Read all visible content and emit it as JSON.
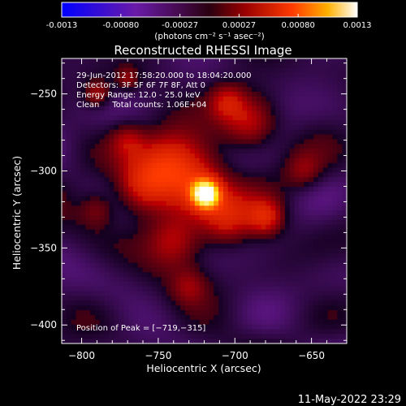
{
  "colorbar": {
    "tick_labels": [
      "-0.0013",
      "-0.00080",
      "-0.00027",
      "0.00027",
      "0.00080",
      "0.0013"
    ],
    "unit_label": "(photons cm⁻² s⁻¹ asec⁻²)",
    "range": [
      -0.0013,
      0.0013
    ]
  },
  "chart_data": {
    "type": "heatmap",
    "title": "Reconstructed RHESSI Image",
    "xlabel": "Heliocentric X (arcsec)",
    "ylabel": "Heliocentric Y (arcsec)",
    "xlim": [
      -813,
      -627
    ],
    "ylim": [
      -412,
      -227
    ],
    "xticks": [
      -800,
      -750,
      -700,
      -650
    ],
    "yticks": [
      -250,
      -300,
      -350,
      -400
    ],
    "xtick_labels": [
      "−800",
      "−750",
      "−700",
      "−650"
    ],
    "ytick_labels": [
      "−250",
      "−300",
      "−350",
      "−400"
    ],
    "peak": {
      "x": -719,
      "y": -315
    },
    "info_lines": [
      "29-Jun-2012 17:58:20.000 to 18:04:20.000",
      "Detectors: 3F 5F 6F 7F 8F, Att 0",
      "Energy Range: 12.0 - 25.0 keV",
      "Clean     Total counts: 1.06E+04"
    ],
    "peak_label": "Position of Peak = [−719,−315]"
  },
  "footer": {
    "date": "11-May-2022 23:29"
  }
}
